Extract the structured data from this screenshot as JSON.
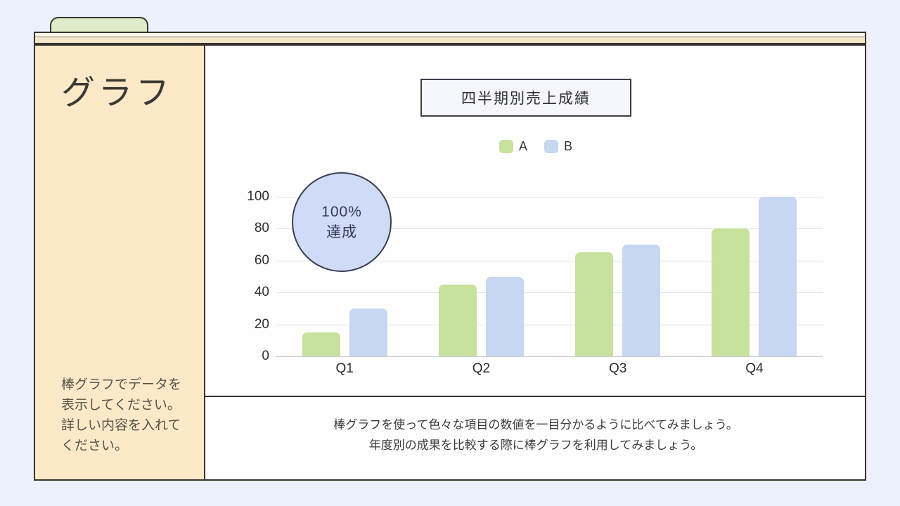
{
  "sidebar": {
    "title": "グラフ",
    "note_lines": [
      "棒グラフでデータを",
      "表示してください。",
      "詳しい内容を入れて",
      "ください。"
    ]
  },
  "chart_data": {
    "type": "bar",
    "title": "四半期別売上成績",
    "categories": [
      "Q1",
      "Q2",
      "Q3",
      "Q4"
    ],
    "series": [
      {
        "name": "A",
        "color": "#c6e29d",
        "values": [
          15,
          45,
          65,
          80
        ]
      },
      {
        "name": "B",
        "color": "#c7d6f1",
        "values": [
          30,
          50,
          70,
          100
        ]
      }
    ],
    "ylim": [
      0,
      100
    ],
    "yticks": [
      0,
      20,
      40,
      60,
      80,
      100
    ],
    "legend_position": "top",
    "grid": "horizontal"
  },
  "badge": {
    "lines": [
      "100%",
      "達成"
    ],
    "fill": "#d0dbf8"
  },
  "caption": {
    "lines": [
      "棒グラフを使って色々な項目の数値を一目分かるように比べてみましょう。",
      "年度別の成果を比較する際に棒グラフを利用してみましょう。"
    ]
  },
  "colors": {
    "page_background": "#ecf1fb",
    "sidebar_background": "#fde9c8",
    "tab_background": "#dfeccb",
    "rail_background": "#f3e6c9",
    "border": "#37342e"
  }
}
